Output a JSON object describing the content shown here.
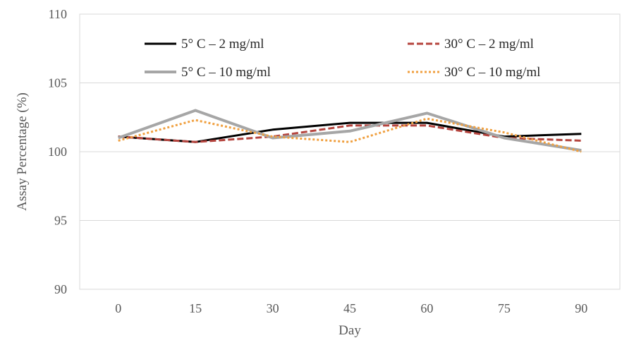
{
  "chart_data": {
    "type": "line",
    "title": "",
    "xlabel": "Day",
    "ylabel": "Assay Percentage (%)",
    "x": [
      0,
      15,
      30,
      45,
      60,
      75,
      90
    ],
    "xticks": [
      "0",
      "15",
      "30",
      "45",
      "60",
      "75",
      "90"
    ],
    "ylim": [
      90,
      110
    ],
    "yticks": [
      "90",
      "95",
      "100",
      "105",
      "110"
    ],
    "grid": "horizontal",
    "legend_position": "top",
    "series": [
      {
        "name": "5° C – 2 mg/ml",
        "values": [
          101.1,
          100.7,
          101.6,
          102.1,
          102.1,
          101.1,
          101.3
        ],
        "color": "#000000",
        "dash": "solid"
      },
      {
        "name": "30° C – 2 mg/ml",
        "values": [
          101.1,
          100.7,
          101.1,
          101.9,
          101.9,
          101.0,
          100.8
        ],
        "color": "#b5443e",
        "dash": "dashed"
      },
      {
        "name": "5° C – 10 mg/ml",
        "values": [
          101.0,
          103.0,
          101.0,
          101.5,
          102.8,
          101.0,
          100.1
        ],
        "color": "#a6a6a6",
        "dash": "solid"
      },
      {
        "name": "30° C – 10 mg/ml",
        "values": [
          100.8,
          102.3,
          101.1,
          100.7,
          102.4,
          101.4,
          100.0
        ],
        "color": "#f0a040",
        "dash": "dotted"
      }
    ]
  }
}
